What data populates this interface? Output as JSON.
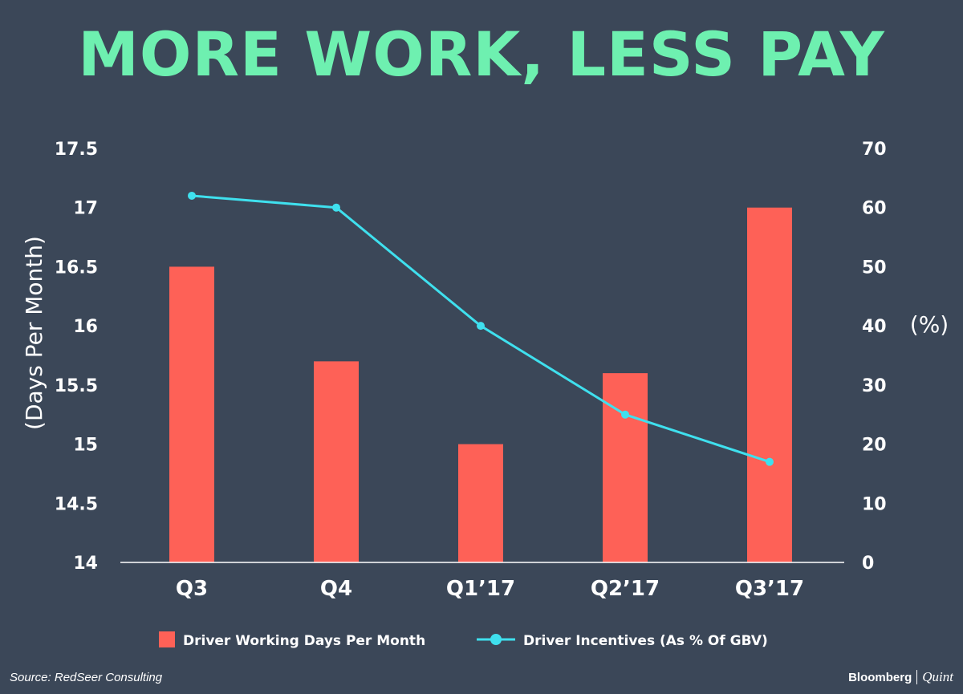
{
  "chart_data": {
    "type": "bar",
    "title": "MORE WORK, LESS PAY",
    "categories": [
      "Q3",
      "Q4",
      "Q1’17",
      "Q2’17",
      "Q3’17"
    ],
    "bar_series": {
      "name": "Driver Working Days Per Month",
      "values": [
        16.5,
        15.7,
        15.0,
        15.6,
        17.0
      ],
      "color": "#fe6157"
    },
    "line_series": {
      "name": "Driver Incentives (As % Of GBV)",
      "values": [
        62,
        60,
        40,
        25,
        17
      ],
      "color": "#3fe0ee"
    },
    "y_left": {
      "label": "(Days Per Month)",
      "ylim": [
        14,
        17.5
      ],
      "ticks": [
        "17.5",
        "17",
        "16.5",
        "16",
        "15.5",
        "15",
        "14.5",
        "14"
      ],
      "tick_values": [
        17.5,
        17,
        16.5,
        16,
        15.5,
        15,
        14.5,
        14
      ]
    },
    "y_right": {
      "label": "(%)",
      "ylim": [
        0,
        70
      ],
      "ticks": [
        "70",
        "60",
        "50",
        "40",
        "30",
        "20",
        "10",
        "0"
      ],
      "tick_values": [
        70,
        60,
        50,
        40,
        30,
        20,
        10,
        0
      ]
    },
    "grid": false,
    "legend_position": "bottom"
  },
  "footer": {
    "source": "Source: RedSeer Consulting",
    "brand_left": "Bloomberg",
    "brand_right": "Quint"
  },
  "colors": {
    "background": "#3b4758",
    "title": "#6ef0b0",
    "axis": "#ffffff"
  }
}
